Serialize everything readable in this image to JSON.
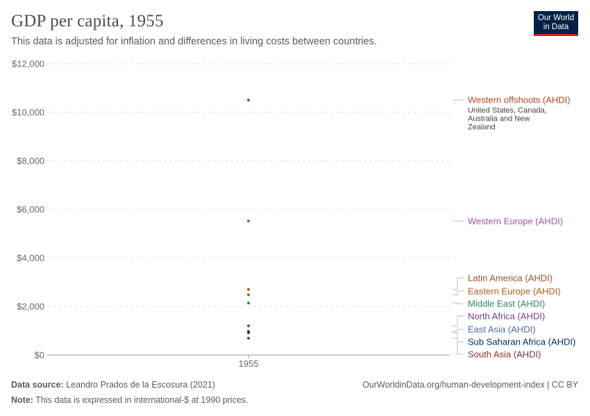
{
  "header": {
    "title": "GDP per capita, 1955",
    "subtitle": "This data is adjusted for inflation and differences in living costs between countries.",
    "logo_line1": "Our World",
    "logo_line2": "in Data"
  },
  "footer": {
    "source_label": "Data source:",
    "source_text": "Leandro Prados de la Escosura (2021)",
    "note_label": "Note:",
    "note_text": "This data is expressed in international-$ at 1990 prices.",
    "url_text": "OurWorldinData.org/human-development-index | CC BY"
  },
  "chart_data": {
    "type": "scatter",
    "title": "GDP per capita, 1955",
    "categories": [
      "1955"
    ],
    "ylim": [
      0,
      12000
    ],
    "yticks": [
      {
        "value": 0,
        "label": "$0"
      },
      {
        "value": 2000,
        "label": "$2,000"
      },
      {
        "value": 4000,
        "label": "$4,000"
      },
      {
        "value": 6000,
        "label": "$6,000"
      },
      {
        "value": 8000,
        "label": "$8,000"
      },
      {
        "value": 10000,
        "label": "$10,000"
      },
      {
        "value": 12000,
        "label": "$12,000"
      }
    ],
    "grid": true,
    "legend_placement": "right",
    "series": [
      {
        "name": "Western offshoots (AHDI)",
        "value": 10500,
        "color": "#b0491e",
        "annotation": "United States, Canada, Australia and New Zealand"
      },
      {
        "name": "Western Europe (AHDI)",
        "value": 5520,
        "color": "#a2559c"
      },
      {
        "name": "Latin America (AHDI)",
        "value": 2700,
        "color": "#9a5129"
      },
      {
        "name": "Eastern Europe (AHDI)",
        "value": 2480,
        "color": "#c05917"
      },
      {
        "name": "Middle East (AHDI)",
        "value": 2140,
        "color": "#2c8465"
      },
      {
        "name": "North Africa (AHDI)",
        "value": 1200,
        "color": "#6d3e91"
      },
      {
        "name": "East Asia (AHDI)",
        "value": 980,
        "color": "#4c6a9c"
      },
      {
        "name": "Sub Saharan Africa (AHDI)",
        "value": 920,
        "color": "#00295b"
      },
      {
        "name": "South Asia (AHDI)",
        "value": 690,
        "color": "#883039"
      }
    ]
  }
}
